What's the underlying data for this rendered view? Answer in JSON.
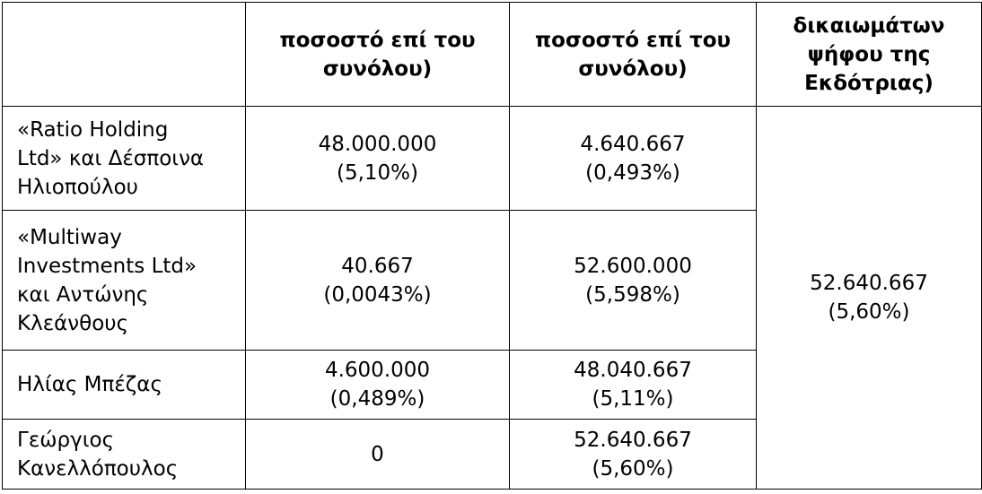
{
  "header": {
    "col1": "",
    "col2": [
      "ποσοστό επί του",
      "συνόλου)"
    ],
    "col3": [
      "ποσοστό επί του",
      "συνόλου)"
    ],
    "col4": [
      "δικαιωμάτων",
      "ψήφου της",
      "Εκδότριας)"
    ]
  },
  "rows": [
    {
      "name": [
        "«Ratio Holding",
        "Ltd» και Δέσποινα",
        "Ηλιοπούλου"
      ],
      "col2": [
        "48.000.000",
        "(5,10%)"
      ],
      "col3": [
        "4.640.667",
        "(0,493%)"
      ]
    },
    {
      "name": [
        "«Multiway",
        "Investments Ltd»",
        "και Αντώνης",
        "Κλεάνθους"
      ],
      "col2": [
        "40.667",
        "(0,0043%)"
      ],
      "col3": [
        "52.600.000",
        "(5,598%)"
      ]
    },
    {
      "name": [
        "Ηλίας Μπέζας"
      ],
      "col2": [
        "4.600.000",
        "(0,489%)"
      ],
      "col3": [
        "48.040.667",
        "(5,11%)"
      ]
    },
    {
      "name": [
        "Γεώργιος",
        "Κανελλόπουλος"
      ],
      "col2": [
        "0"
      ],
      "col3": [
        "52.640.667",
        "(5,60%)"
      ]
    }
  ],
  "merged_col4": [
    "52.640.667",
    "(5,60%)"
  ]
}
